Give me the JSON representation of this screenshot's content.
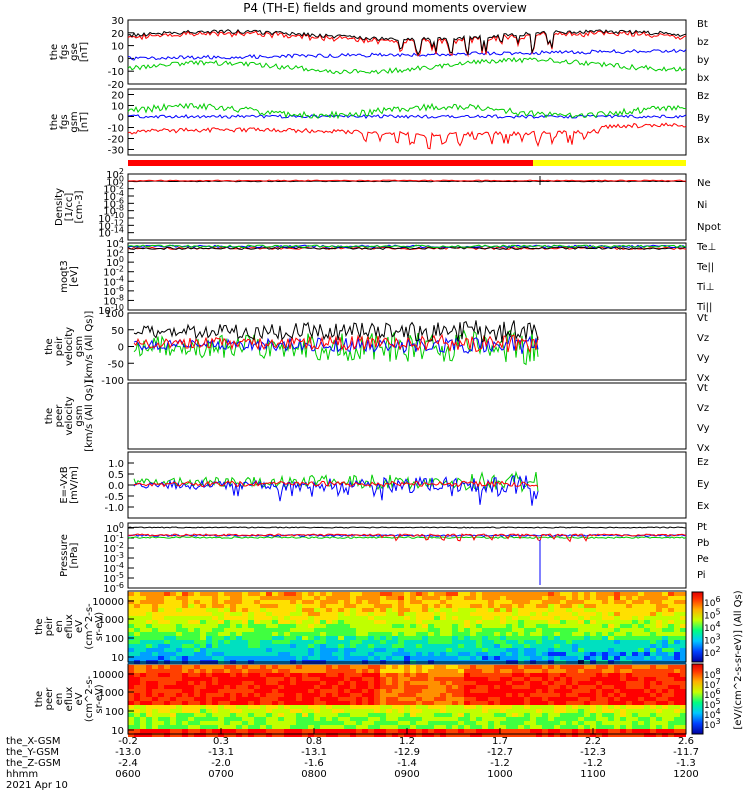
{
  "title": "P4 (TH-E) fields and ground moments overview",
  "date_label": "2021 Apr 10",
  "xaxis": {
    "rows": [
      {
        "label": "the_X-GSM",
        "values": [
          "-0.2",
          "0.3",
          "0.8",
          "1.2",
          "1.7",
          "2.2",
          "2.6"
        ]
      },
      {
        "label": "the_Y-GSM",
        "values": [
          "-13.0",
          "-13.1",
          "-13.1",
          "-12.9",
          "-12.7",
          "-12.3",
          "-11.7"
        ]
      },
      {
        "label": "the_Z-GSM",
        "values": [
          "-2.4",
          "-2.0",
          "-1.6",
          "-1.4",
          "-1.2",
          "-1.2",
          "-1.3"
        ]
      },
      {
        "label": "hhmm",
        "values": [
          "0600",
          "0700",
          "0800",
          "0900",
          "1000",
          "1100",
          "1200"
        ]
      }
    ]
  },
  "colorbar": {
    "label": "[eV/(cm^2-s-sr-eV)] (All Qs)",
    "upper_ticks": [
      "10^6",
      "10^5",
      "10^4",
      "10^3",
      "10^2"
    ],
    "lower_ticks": [
      "10^8",
      "10^7",
      "10^6",
      "10^5",
      "10^4",
      "10^3"
    ]
  },
  "chart_data": [
    {
      "type": "line",
      "panel": "fgs gse",
      "ylabel": [
        "the",
        "fgs",
        "gse",
        "[nT]"
      ],
      "ylim": [
        -20,
        30
      ],
      "yticks": [
        "30",
        "20",
        "10",
        "0",
        "-10",
        "-20"
      ],
      "series": [
        {
          "name": "Bt",
          "color": "#000000",
          "level": 18
        },
        {
          "name": "bz",
          "color": "#ff0000",
          "level": 16
        },
        {
          "name": "by",
          "color": "#00cc00",
          "level": -8
        },
        {
          "name": "bx",
          "color": "#0000ff",
          "level": 2
        }
      ]
    },
    {
      "type": "line",
      "panel": "fgs gsm",
      "ylabel": [
        "the",
        "fgs",
        "gsm",
        "[nT]"
      ],
      "ylim": [
        -35,
        25
      ],
      "yticks": [
        "20",
        "10",
        "0",
        "-10",
        "-20",
        "-30"
      ],
      "series": [
        {
          "name": "Bz",
          "color": "#ff0000",
          "level": -14
        },
        {
          "name": "By",
          "color": "#00cc00",
          "level": 5
        },
        {
          "name": "Bx",
          "color": "#0000ff",
          "level": 0
        }
      ]
    },
    {
      "type": "line",
      "panel": "density",
      "ylabel": [
        "Density",
        "[1/cc]",
        "[cm-3]"
      ],
      "ylim": [
        -16,
        2
      ],
      "log": true,
      "yticks": [
        "10^2",
        "10^0",
        "10^-2",
        "10^-4",
        "10^-6",
        "10^-8",
        "10^-10",
        "10^-12",
        "10^-14"
      ],
      "series": [
        {
          "name": "Ne",
          "color": "#ff0000"
        },
        {
          "name": "Ni",
          "color": "#000000"
        },
        {
          "name": "Npot",
          "color": "#0000ff"
        }
      ]
    },
    {
      "type": "line",
      "panel": "temperature",
      "ylabel": [
        "moqt3",
        "[eV]"
      ],
      "ylim": [
        -10,
        4
      ],
      "log": true,
      "yticks": [
        "10^4",
        "10^2",
        "10^0",
        "10^-2",
        "10^-4",
        "10^-6",
        "10^-8",
        "10^-10"
      ],
      "series": [
        {
          "name": "Te⊥",
          "color": "#ff0000"
        },
        {
          "name": "Te||",
          "color": "#000000"
        },
        {
          "name": "Ti⊥",
          "color": "#0000ff"
        },
        {
          "name": "Ti||",
          "color": "#00cc00"
        }
      ]
    },
    {
      "type": "line",
      "panel": "peir velocity",
      "ylabel": [
        "the",
        "peir",
        "velocity",
        "gsm",
        "[km/s (All Qs)]"
      ],
      "ylim": [
        -100,
        100
      ],
      "yticks": [
        "100",
        "50",
        "0",
        "-50",
        "-100"
      ],
      "series": [
        {
          "name": "Vt",
          "color": "#000000"
        },
        {
          "name": "Vz",
          "color": "#ff0000"
        },
        {
          "name": "Vy",
          "color": "#00cc00"
        },
        {
          "name": "Vx",
          "color": "#0000ff"
        }
      ]
    },
    {
      "type": "line",
      "panel": "peer velocity",
      "ylabel": [
        "the",
        "peer",
        "velocity",
        "gsm",
        "[km/s (All Qs)]"
      ],
      "ylim": [
        -100,
        100
      ],
      "yticks": [],
      "series": [
        {
          "name": "Vt",
          "color": "#000000"
        },
        {
          "name": "Vz",
          "color": "#ff0000"
        },
        {
          "name": "Vy",
          "color": "#00cc00"
        },
        {
          "name": "Vx",
          "color": "#0000ff"
        }
      ]
    },
    {
      "type": "line",
      "panel": "E=-VxB",
      "ylabel": [
        "E=-VxB",
        "[mV/m]"
      ],
      "ylim": [
        -1.5,
        1.5
      ],
      "yticks": [
        "1.0",
        "0.5",
        "0.0",
        "-0.5",
        "-1.0"
      ],
      "series": [
        {
          "name": "Ez",
          "color": "#ff0000"
        },
        {
          "name": "Ey",
          "color": "#00cc00"
        },
        {
          "name": "Ex",
          "color": "#0000ff"
        }
      ]
    },
    {
      "type": "line",
      "panel": "pressure",
      "ylabel": [
        "Pressure",
        "[nPa]"
      ],
      "ylim": [
        -6,
        0.5
      ],
      "log": true,
      "yticks": [
        "10^0",
        "10^-1",
        "10^-2",
        "10^-3",
        "10^-4",
        "10^-5",
        "10^-6"
      ],
      "series": [
        {
          "name": "Pt",
          "color": "#000000"
        },
        {
          "name": "Pb",
          "color": "#ff0000"
        },
        {
          "name": "Pe",
          "color": "#00cc00"
        },
        {
          "name": "Pi",
          "color": "#0000ff"
        }
      ]
    },
    {
      "type": "heatmap",
      "panel": "peir en eflux",
      "ylabel": [
        "the",
        "peir",
        "en",
        "eflux",
        "eV",
        "(cm^2-s-",
        "sr-eV)"
      ],
      "yticks": [
        "10000",
        "1000",
        "100",
        "10"
      ]
    },
    {
      "type": "heatmap",
      "panel": "peer en eflux",
      "ylabel": [
        "the",
        "peer",
        "en",
        "eflux",
        "eV",
        "(cm^2-s-",
        "sr-eV)"
      ],
      "yticks": [
        "10000",
        "1000",
        "100",
        "10"
      ]
    }
  ]
}
